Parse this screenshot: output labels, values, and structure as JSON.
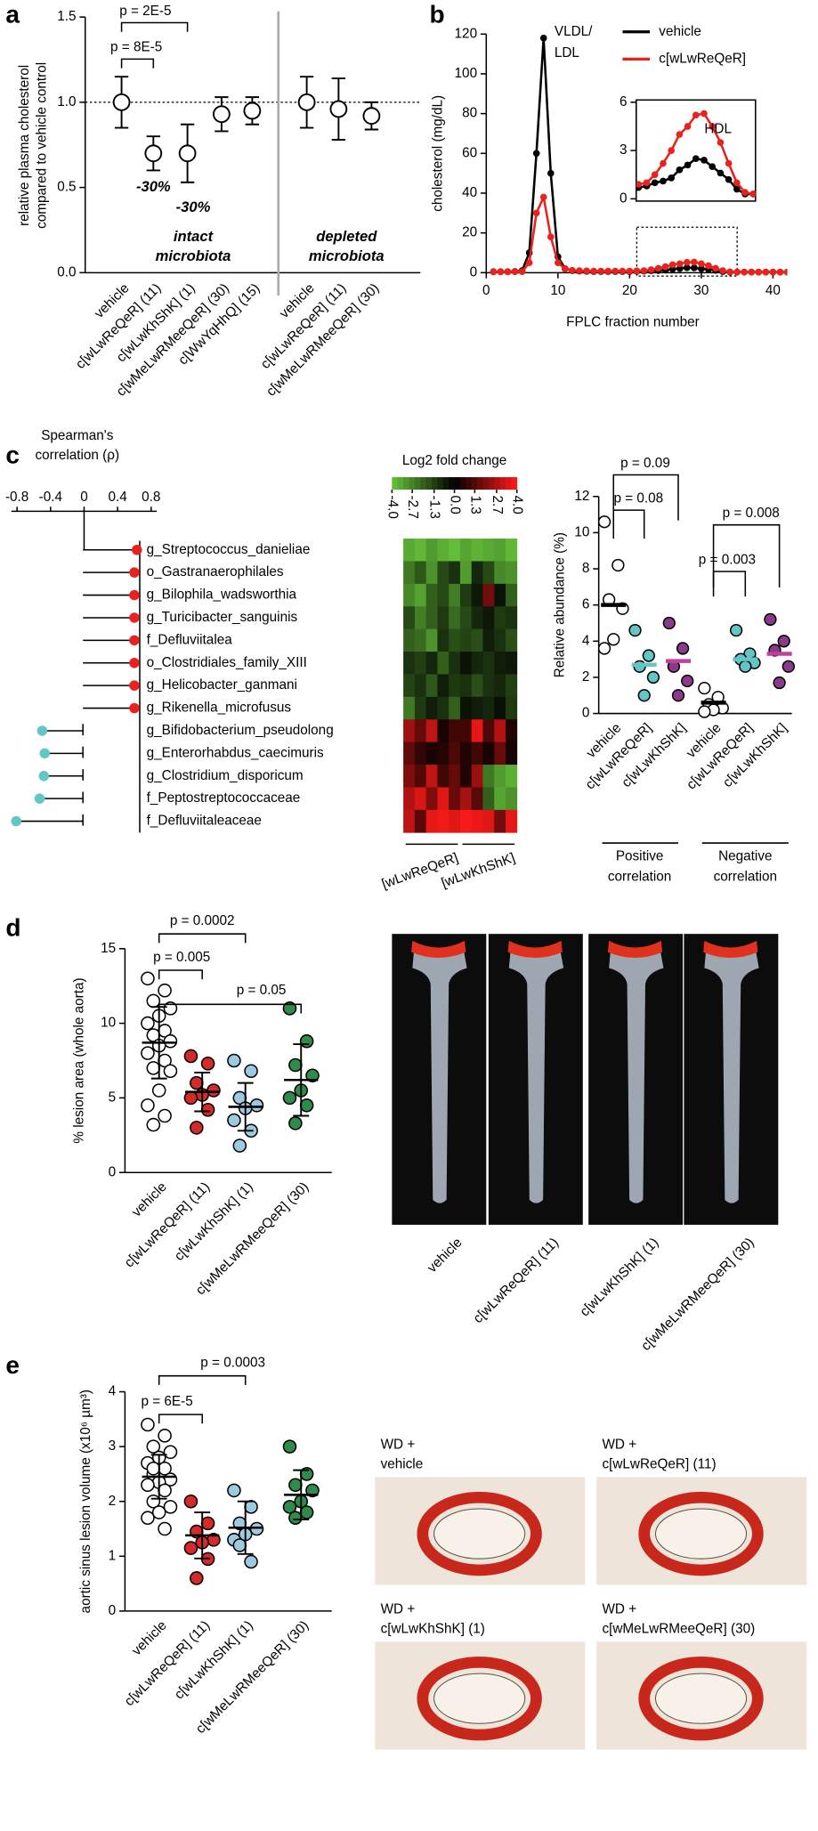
{
  "panel_labels": [
    "a",
    "b",
    "c",
    "d",
    "e"
  ],
  "chart_data": [
    {
      "type": "errorbar-dot",
      "y_label": [
        "relative plasma cholesterol",
        "compared to vehicle control"
      ],
      "categories": [
        "vehicle",
        "c[wLwReQeR] (11)",
        "c[wLwKhShK] (1)",
        "c[wMeLwRMeeQeR] (30)",
        "c[WwYqHhQ] (15)",
        "vehicle",
        "c[wLwReQeR] (11)",
        "c[wMeLwRMeeQeR] (30)"
      ],
      "values": [
        1.0,
        0.7,
        0.7,
        0.93,
        0.95,
        1.0,
        0.96,
        0.92
      ],
      "errors": [
        0.15,
        0.1,
        0.17,
        0.1,
        0.08,
        0.15,
        0.18,
        0.08
      ],
      "color": "#000000",
      "reference_line": 1,
      "ylim": [
        0,
        1.5
      ],
      "yticks": [
        {
          "value": 0,
          "label": "0.0"
        },
        0.5,
        {
          "value": 1,
          "label": "1.0"
        },
        1.5
      ],
      "annotations": [
        "p = 2E-5",
        "p = 8E-5"
      ],
      "value_annotations": [
        "-30%",
        "-30%"
      ],
      "group_labels": [
        [
          "intact",
          "microbiota"
        ],
        [
          "depleted",
          "microbiota"
        ]
      ]
    },
    {
      "type": "line",
      "y_label": "cholesterol (mg/dL)",
      "x_label": "FPLC fraction number",
      "x": [
        1,
        2,
        3,
        4,
        5,
        6,
        7,
        8,
        9,
        10,
        11,
        12,
        13,
        14,
        15,
        16,
        17,
        18,
        19,
        20,
        21,
        22,
        23,
        24,
        25,
        26,
        27,
        28,
        29,
        30,
        31,
        32,
        33,
        34,
        35,
        36,
        37,
        38,
        39,
        40,
        41,
        42
      ],
      "series": [
        {
          "name": "vehicle",
          "color": "#000000",
          "values": [
            0.5,
            0.5,
            0.5,
            0.6,
            1,
            10,
            60,
            118,
            50,
            8,
            2,
            1,
            0.8,
            0.7,
            0.6,
            0.6,
            0.6,
            0.6,
            0.6,
            0.6,
            0.7,
            0.8,
            1.0,
            1.1,
            1.3,
            1.8,
            2.1,
            2.5,
            2.4,
            2.0,
            1.6,
            1.2,
            0.6,
            0.3,
            0.3,
            0.3,
            0.3,
            0.3,
            0.3,
            0.3,
            0.3,
            0.3
          ]
        },
        {
          "name": "c[wLwReQeR]",
          "color": "#e8231f",
          "values": [
            0.4,
            0.4,
            0.4,
            0.5,
            0.5,
            5,
            30,
            38,
            18,
            5,
            2,
            1.2,
            1.0,
            0.9,
            0.8,
            0.8,
            0.8,
            0.8,
            0.8,
            0.8,
            0.9,
            1.0,
            1.5,
            2.2,
            3.0,
            4.0,
            4.5,
            5.2,
            5.3,
            4.5,
            3.5,
            2.2,
            1.0,
            0.4,
            0.3,
            0.3,
            0.3,
            0.3,
            0.3,
            0.3,
            0.3,
            0.3
          ]
        }
      ],
      "xlim": [
        0,
        42
      ],
      "xticks": [
        0,
        10,
        20,
        30,
        40
      ],
      "ylim": [
        0,
        120
      ],
      "yticks": [
        0,
        20,
        40,
        60,
        80,
        100,
        120
      ],
      "annotations": [
        "VLDL/",
        "LDL",
        "HDL"
      ],
      "inset": {
        "xlim": [
          21,
          35
        ],
        "ylim": [
          0,
          6
        ],
        "yticks": [
          0,
          3,
          6
        ]
      }
    },
    {
      "type": "lollipop",
      "title": [
        "Spearman's",
        "correlation (ρ)"
      ],
      "categories": [
        "g_Streptococcus_danieliae",
        "o_Gastranaerophilales",
        "g_Bilophila_wadsworthia",
        "g_Turicibacter_sanguinis",
        "f_Defluviitalea",
        "o_Clostridiales_family_XIII",
        "g_Helicobacter_ganmani",
        "g_Rikenella_microfusus",
        "g_Bifidobacterium_pseudolong",
        "g_Enterorhabdus_caecimuris",
        "g_Clostridium_disporicum",
        "f_Peptostreptococcaceae",
        "f_Defluviitaleaceae"
      ],
      "values": [
        0.63,
        0.6,
        0.6,
        0.6,
        0.6,
        0.6,
        0.6,
        0.6,
        -0.5,
        -0.47,
        -0.48,
        -0.53,
        -0.81
      ],
      "colors": [
        "#e8231f",
        "#e8231f",
        "#e8231f",
        "#e8231f",
        "#e8231f",
        "#e8231f",
        "#e8231f",
        "#e8231f",
        "#62c6c6",
        "#62c6c6",
        "#62c6c6",
        "#62c6c6",
        "#62c6c6"
      ],
      "xlim": [
        -0.8,
        0.8
      ],
      "xticks": [
        -0.8,
        -0.4,
        0,
        0.4,
        0.8
      ]
    },
    {
      "type": "heatmap",
      "title": "Log2 fold change",
      "colormap": [
        "#66c23a",
        "#000000",
        "#ff1a1a"
      ],
      "clim": [
        -4,
        4
      ],
      "cticks": [
        {
          "value": -4,
          "label": "-4.0"
        },
        -2.7,
        -1.3,
        {
          "value": 0,
          "label": "0.0"
        },
        1.3,
        2.7,
        {
          "value": 4,
          "label": "4.0"
        }
      ],
      "group_labels": [
        "[wLwReQeR]",
        "[wLwKhShK]"
      ],
      "values": [
        [
          -3.5,
          -3.8,
          -3.2,
          -3.6,
          -3.9,
          -3.4,
          -3.7,
          -3.5,
          -3.3,
          -3.8
        ],
        [
          -2.5,
          -1.8,
          -3.0,
          -1.5,
          -1.0,
          -3.2,
          -0.8,
          -1.5,
          -2.8,
          -3.0
        ],
        [
          -2.8,
          -3.3,
          -2.0,
          -1.5,
          -2.6,
          -1.2,
          -0.5,
          1.8,
          -0.4,
          -2.0
        ],
        [
          -1.5,
          -2.6,
          -2.0,
          -1.2,
          -2.2,
          -1.5,
          -0.8,
          -0.5,
          -1.2,
          -1.0
        ],
        [
          -2.0,
          -2.2,
          -3.0,
          -1.0,
          -1.6,
          -1.4,
          -1.6,
          -0.6,
          -1.0,
          -1.6
        ],
        [
          -1.0,
          -1.3,
          -0.8,
          -2.0,
          -1.0,
          -0.4,
          -0.8,
          -1.0,
          -0.6,
          -0.5
        ],
        [
          -1.4,
          -1.0,
          -1.8,
          -0.6,
          -1.2,
          -1.0,
          -1.6,
          -1.0,
          -0.8,
          -1.3
        ],
        [
          -2.5,
          -1.2,
          -0.6,
          -1.0,
          -2.0,
          -0.4,
          -0.6,
          -0.8,
          -0.3,
          -1.2
        ],
        [
          2.5,
          1.6,
          3.0,
          0.4,
          1.0,
          1.0,
          3.6,
          1.2,
          2.8,
          0.5
        ],
        [
          1.5,
          0.8,
          0.4,
          0.6,
          1.2,
          0.5,
          1.0,
          0.4,
          1.6,
          0.4
        ],
        [
          2.0,
          1.3,
          3.0,
          1.0,
          1.6,
          0.5,
          2.4,
          -2.5,
          -3.2,
          -3.6
        ],
        [
          2.8,
          3.4,
          2.0,
          3.5,
          1.6,
          2.6,
          1.4,
          -2.0,
          -3.4,
          -3.0
        ],
        [
          3.0,
          1.4,
          3.6,
          3.8,
          3.5,
          3.9,
          3.7,
          3.5,
          1.8,
          3.6
        ]
      ]
    },
    {
      "type": "dotplot",
      "y_label": "Relative abundance (%)",
      "categories": [
        "vehicle",
        "c[wLwReQeR]",
        "c[wLwKhShK]",
        "vehicle",
        "c[wLwReQeR]",
        "c[wLwKhShK]"
      ],
      "points": [
        [
          10.6,
          8.2,
          6.3,
          5.8,
          4.1,
          3.6
        ],
        [
          4.6,
          3.2,
          2.6,
          2.0,
          1.0
        ],
        [
          5.0,
          3.6,
          2.6,
          1.8,
          1.0
        ],
        [
          1.4,
          0.9,
          0.5,
          0.3,
          0.2,
          0.1
        ],
        [
          4.6,
          3.3,
          3.0,
          2.8,
          2.6
        ],
        [
          5.2,
          4.0,
          3.5,
          2.6,
          1.7
        ]
      ],
      "colors": [
        "#ffffff",
        "#62c6c6",
        "#8b3a8b",
        "#ffffff",
        "#62c6c6",
        "#8b3a8b"
      ],
      "median_colors": [
        "#000000",
        "#62c6c6",
        "#c040a0",
        "#000000",
        "#62c6c6",
        "#c040a0"
      ],
      "medians": [
        6.0,
        2.7,
        2.9,
        0.6,
        3.0,
        3.3
      ],
      "ylim": [
        0,
        12
      ],
      "yticks": [
        0,
        2,
        4,
        6,
        8,
        10,
        12
      ],
      "annotations": [
        "p = 0.09",
        "p = 0.08",
        "p = 0.008",
        "p = 0.003"
      ],
      "group_labels": [
        [
          "Positive",
          "correlation"
        ],
        [
          "Negative",
          "correlation"
        ]
      ]
    },
    {
      "type": "dotplot",
      "y_label": "% lesion area (whole aorta)",
      "categories": [
        "vehicle",
        "c[wLwReQeR] (11)",
        "c[wLwKhShK] (1)",
        "c[wMeLwRMeeQeR] (30)"
      ],
      "points": [
        [
          13.0,
          12.2,
          11.5,
          11.0,
          10.5,
          10.0,
          9.5,
          9.2,
          8.8,
          8.5,
          8.0,
          7.5,
          7.0,
          6.8,
          5.5,
          4.5,
          3.8,
          3.2
        ],
        [
          7.8,
          7.3,
          6.0,
          5.5,
          5.2,
          5.0,
          4.2,
          3.0
        ],
        [
          7.5,
          6.8,
          5.0,
          4.5,
          4.3,
          3.5,
          2.8,
          1.8
        ],
        [
          11.0,
          8.8,
          7.2,
          6.5,
          5.5,
          5.0,
          4.5,
          3.3
        ]
      ],
      "colors": [
        "#ffffff",
        "#d42a2a",
        "#9ecae1",
        "#2e8b4a"
      ],
      "means": [
        8.7,
        5.4,
        4.4,
        6.2
      ],
      "sd": [
        2.4,
        1.3,
        1.6,
        2.4
      ],
      "ylim": [
        0,
        15
      ],
      "yticks": [
        0,
        5,
        10,
        15
      ],
      "annotations": [
        "p = 0.0002",
        "p = 0.005",
        "p = 0.05"
      ],
      "image_labels": [
        "vehicle",
        "c[wLwReQeR] (11)",
        "c[wLwKhShK] (1)",
        "c[wMeLwRMeeQeR] (30)"
      ]
    },
    {
      "type": "dotplot",
      "y_label": "aortic sinus lesion volume (x10⁶ µm³)",
      "categories": [
        "vehicle",
        "c[wLwReQeR] (11)",
        "c[wLwKhShK] (1)",
        "c[wMeLwRMeeQeR] (30)"
      ],
      "points": [
        [
          3.4,
          3.2,
          3.0,
          2.9,
          2.8,
          2.7,
          2.6,
          2.5,
          2.4,
          2.35,
          2.3,
          2.2,
          2.0,
          1.9,
          1.8,
          1.7,
          1.5,
          2.6
        ],
        [
          2.0,
          1.6,
          1.45,
          1.3,
          1.25,
          1.15,
          0.95,
          0.6
        ],
        [
          2.2,
          1.9,
          1.6,
          1.5,
          1.4,
          1.3,
          0.9,
          1.2
        ],
        [
          3.0,
          2.5,
          2.3,
          2.2,
          2.0,
          1.9,
          1.8,
          1.7
        ]
      ],
      "colors": [
        "#ffffff",
        "#d42a2a",
        "#9ecae1",
        "#2e8b4a"
      ],
      "means": [
        2.45,
        1.38,
        1.52,
        2.12
      ],
      "sd": [
        0.4,
        0.42,
        0.48,
        0.45
      ],
      "ylim": [
        0,
        4
      ],
      "yticks": [
        0,
        1,
        2,
        3,
        4
      ],
      "annotations": [
        "p = 0.0003",
        "p = 6E-5"
      ],
      "image_labels": [
        [
          "WD +",
          "vehicle"
        ],
        [
          "WD +",
          "c[wLwReQeR] (11)"
        ],
        [
          "WD +",
          "c[wLwKhShK] (1)"
        ],
        [
          "WD +",
          "c[wMeLwRMeeQeR] (30)"
        ]
      ]
    }
  ]
}
